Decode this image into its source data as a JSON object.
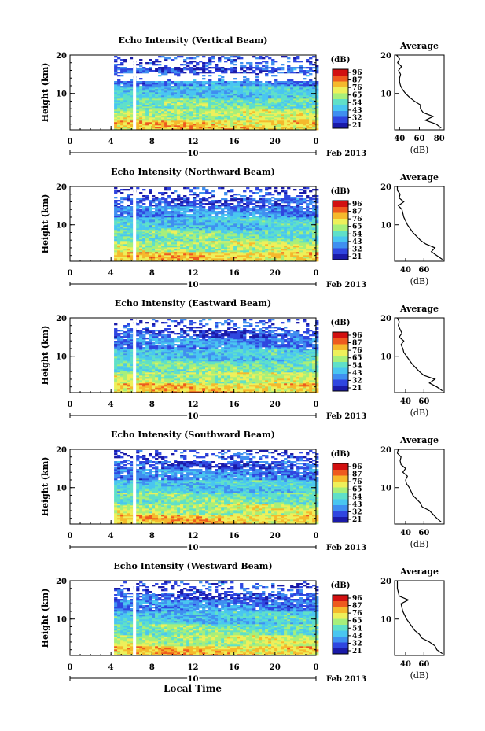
{
  "figure": {
    "x_axis_title": "Local Time",
    "date_label": "Feb 2013",
    "colorbar_unit": "(dB)",
    "colorbar_ticks": [
      "96",
      "87",
      "76",
      "65",
      "54",
      "43",
      "32",
      "21"
    ],
    "colormap": [
      "#1a1aa8",
      "#2f46e0",
      "#3f8ff0",
      "#49c6f0",
      "#5fe0c8",
      "#a7ef7a",
      "#eef05a",
      "#f5b92c",
      "#ee5a1e",
      "#d21010"
    ]
  },
  "chart_data": [
    {
      "type": "heatmap",
      "title": "Echo Intensity (Vertical Beam)",
      "ylabel": "Height (km)",
      "x_ticks": [
        "0",
        "4",
        "8",
        "12",
        "16",
        "20",
        "0"
      ],
      "xlim": [
        0,
        24
      ],
      "y_ticks": [
        "20",
        "10"
      ],
      "ylim": [
        0.5,
        20
      ],
      "date_tick": "10",
      "data_start_hour": 4.3,
      "gap_hour": 6.3,
      "colorbar_ticks": [
        "96",
        "87",
        "76",
        "65",
        "54",
        "43",
        "32",
        "21"
      ],
      "profile": {
        "title": "Average",
        "xlabel": "(dB)",
        "x_ticks": [
          "40",
          "60",
          "80"
        ],
        "xlim": [
          35,
          85
        ],
        "heights": [
          1,
          2,
          3,
          4,
          5,
          6,
          7,
          8,
          9,
          10,
          11,
          12,
          13,
          14,
          15,
          16,
          17,
          18,
          19,
          20
        ],
        "values": [
          82,
          77,
          66,
          74,
          64,
          61,
          61,
          55,
          50,
          46,
          43,
          41,
          40,
          40,
          41,
          39,
          42,
          38,
          40,
          37
        ]
      }
    },
    {
      "type": "heatmap",
      "title": "Echo Intensity (Northward Beam)",
      "ylabel": "Height (km)",
      "x_ticks": [
        "0",
        "4",
        "8",
        "12",
        "16",
        "20",
        "0"
      ],
      "xlim": [
        0,
        24
      ],
      "y_ticks": [
        "20",
        "10"
      ],
      "ylim": [
        0.5,
        20
      ],
      "date_tick": "10",
      "data_start_hour": 4.3,
      "gap_hour": 6.3,
      "colorbar_ticks": [
        "96",
        "87",
        "76",
        "65",
        "54",
        "43",
        "32",
        "21"
      ],
      "profile": {
        "title": "Average",
        "xlabel": "(dB)",
        "x_ticks": [
          "40",
          "60"
        ],
        "xlim": [
          28,
          82
        ],
        "heights": [
          1,
          2,
          3,
          4,
          5,
          6,
          7,
          8,
          9,
          10,
          11,
          12,
          13,
          14,
          15,
          16,
          17,
          18,
          19,
          20
        ],
        "values": [
          80,
          74,
          68,
          72,
          62,
          56,
          52,
          48,
          45,
          42,
          40,
          38,
          37,
          36,
          32,
          38,
          33,
          34,
          31,
          31
        ]
      }
    },
    {
      "type": "heatmap",
      "title": "Echo Intensity (Eastward Beam)",
      "ylabel": "Height (km)",
      "x_ticks": [
        "0",
        "4",
        "8",
        "12",
        "16",
        "20",
        "0"
      ],
      "xlim": [
        0,
        24
      ],
      "y_ticks": [
        "20",
        "10"
      ],
      "ylim": [
        0.5,
        20
      ],
      "date_tick": "10",
      "data_start_hour": 4.3,
      "gap_hour": 6.3,
      "colorbar_ticks": [
        "96",
        "87",
        "76",
        "65",
        "54",
        "43",
        "32",
        "21"
      ],
      "profile": {
        "title": "Average",
        "xlabel": "(dB)",
        "x_ticks": [
          "40",
          "60"
        ],
        "xlim": [
          28,
          82
        ],
        "heights": [
          1,
          2,
          3,
          4,
          5,
          6,
          7,
          8,
          9,
          10,
          11,
          12,
          13,
          14,
          15,
          16,
          17,
          18,
          19,
          20
        ],
        "values": [
          80,
          74,
          66,
          72,
          60,
          55,
          51,
          47,
          44,
          41,
          38,
          37,
          35,
          38,
          33,
          36,
          34,
          32,
          33,
          31
        ]
      }
    },
    {
      "type": "heatmap",
      "title": "Echo Intensity (Southward Beam)",
      "ylabel": "Height (km)",
      "x_ticks": [
        "0",
        "4",
        "8",
        "12",
        "16",
        "20",
        "0"
      ],
      "xlim": [
        0,
        24
      ],
      "y_ticks": [
        "20",
        "10"
      ],
      "ylim": [
        0.5,
        20
      ],
      "date_tick": "10",
      "data_start_hour": 4.3,
      "gap_hour": 6.3,
      "colorbar_ticks": [
        "96",
        "87",
        "76",
        "65",
        "54",
        "43",
        "32",
        "21"
      ],
      "profile": {
        "title": "Average",
        "xlabel": "(dB)",
        "x_ticks": [
          "40",
          "60"
        ],
        "xlim": [
          28,
          82
        ],
        "heights": [
          1,
          2,
          3,
          4,
          5,
          6,
          7,
          8,
          9,
          10,
          11,
          12,
          13,
          14,
          15,
          16,
          17,
          18,
          19,
          20
        ],
        "values": [
          79,
          74,
          70,
          66,
          58,
          56,
          52,
          48,
          46,
          44,
          41,
          40,
          42,
          37,
          40,
          35,
          34,
          35,
          31,
          32
        ]
      }
    },
    {
      "type": "heatmap",
      "title": "Echo Intensity (Westward Beam)",
      "ylabel": "Height (km)",
      "x_ticks": [
        "0",
        "4",
        "8",
        "12",
        "16",
        "20",
        "0"
      ],
      "xlim": [
        0,
        24
      ],
      "y_ticks": [
        "20",
        "10"
      ],
      "ylim": [
        0.5,
        20
      ],
      "date_tick": "10",
      "data_start_hour": 4.3,
      "gap_hour": 6.3,
      "colorbar_ticks": [
        "96",
        "87",
        "76",
        "65",
        "54",
        "43",
        "32",
        "21"
      ],
      "profile": {
        "title": "Average",
        "xlabel": "(dB)",
        "x_ticks": [
          "40",
          "60"
        ],
        "xlim": [
          28,
          82
        ],
        "heights": [
          1,
          2,
          3,
          4,
          5,
          6,
          7,
          8,
          9,
          10,
          11,
          12,
          13,
          14,
          15,
          16,
          17,
          18,
          19,
          20
        ],
        "values": [
          80,
          74,
          72,
          66,
          58,
          55,
          50,
          47,
          44,
          41,
          39,
          37,
          36,
          35,
          43,
          33,
          32,
          31,
          31,
          31
        ]
      }
    }
  ]
}
